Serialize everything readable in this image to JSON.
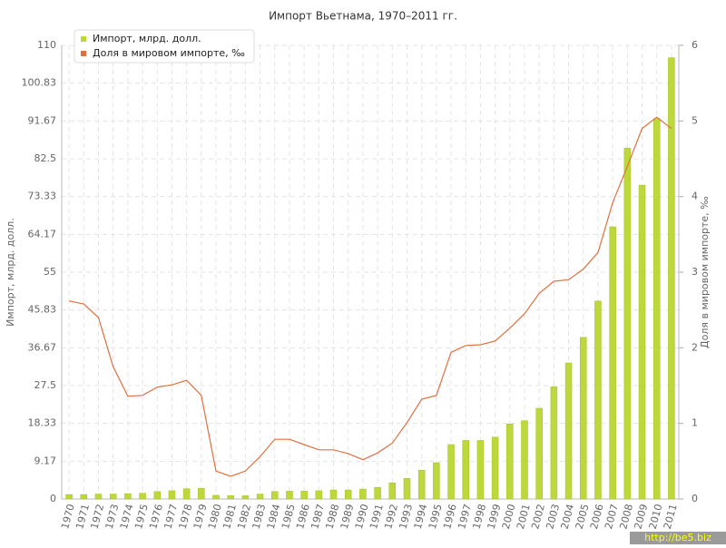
{
  "chart_data": {
    "type": "bar-line",
    "title": "Импорт Вьетнама, 1970–2011 гг.",
    "y_label": "Импорт, млрд. долл.",
    "y2_label": "Доля в мировом импорте, ‰",
    "watermark": "http://be5.biz",
    "categories": [
      "1970",
      "1971",
      "1972",
      "1973",
      "1974",
      "1975",
      "1976",
      "1977",
      "1978",
      "1979",
      "1980",
      "1981",
      "1982",
      "1983",
      "1984",
      "1985",
      "1986",
      "1987",
      "1988",
      "1989",
      "1990",
      "1991",
      "1992",
      "1993",
      "1994",
      "1995",
      "1996",
      "1997",
      "1998",
      "1999",
      "2000",
      "2001",
      "2002",
      "2003",
      "2004",
      "2005",
      "2006",
      "2007",
      "2008",
      "2009",
      "2010",
      "2011"
    ],
    "series": [
      {
        "name": "Импорт, млрд. долл.",
        "type": "bar",
        "color": "#bcd83c",
        "values": [
          1.1,
          1.1,
          1.2,
          1.2,
          1.3,
          1.4,
          1.8,
          2.0,
          2.5,
          2.6,
          0.9,
          0.8,
          0.8,
          1.2,
          1.8,
          1.9,
          1.9,
          2.0,
          2.2,
          2.2,
          2.4,
          2.8,
          3.9,
          5.0,
          7.0,
          8.8,
          13.2,
          14.2,
          14.2,
          15.0,
          18.2,
          19.0,
          22.0,
          27.2,
          33.0,
          39.2,
          48.0,
          66.0,
          85.1,
          76.1,
          92.2,
          107.0
        ]
      },
      {
        "name": "Доля в мировом импорте, ‰",
        "type": "line",
        "axis": "y2",
        "color": "#e07040",
        "values": [
          2.62,
          2.58,
          2.4,
          1.75,
          1.36,
          1.37,
          1.48,
          1.51,
          1.57,
          1.37,
          0.37,
          0.3,
          0.37,
          0.56,
          0.79,
          0.79,
          0.72,
          0.65,
          0.65,
          0.6,
          0.52,
          0.61,
          0.74,
          1.01,
          1.32,
          1.37,
          1.94,
          2.03,
          2.04,
          2.09,
          2.26,
          2.45,
          2.72,
          2.88,
          2.9,
          3.04,
          3.26,
          3.92,
          4.4,
          4.9,
          5.05,
          4.9
        ]
      }
    ],
    "ylim": [
      0,
      110
    ],
    "yticks": [
      0,
      9.17,
      18.33,
      27.5,
      36.67,
      45.83,
      55,
      64.17,
      73.33,
      82.5,
      91.67,
      100.83,
      110
    ],
    "y2lim": [
      0,
      6
    ],
    "y2ticks": [
      0,
      1,
      2,
      3,
      4,
      5,
      6
    ],
    "grid": true,
    "legend": "top-left"
  }
}
